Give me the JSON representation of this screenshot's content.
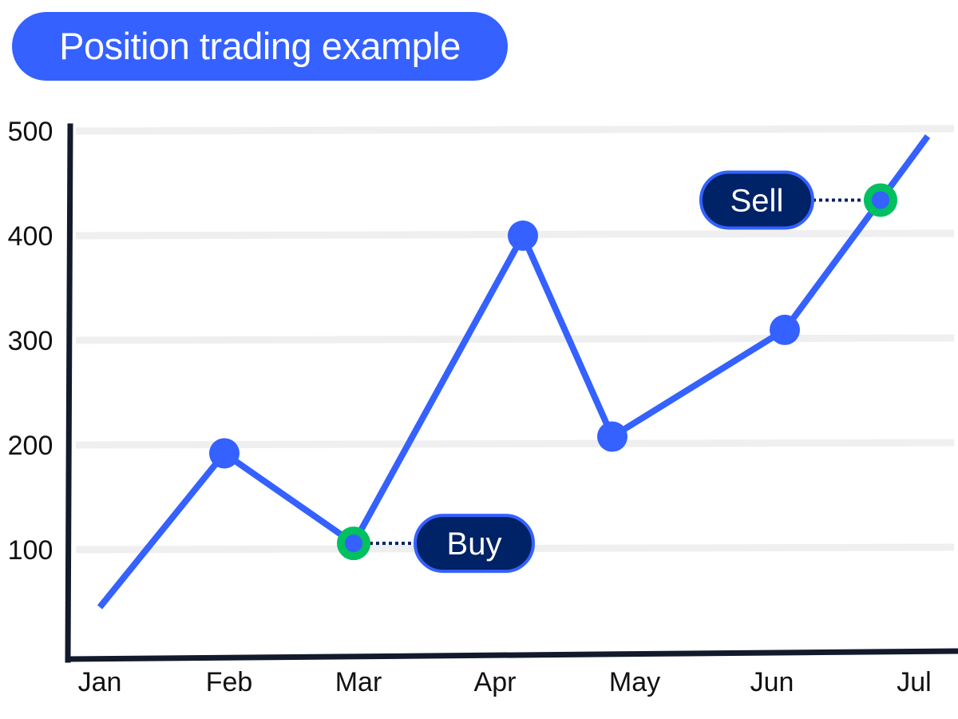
{
  "chart_data": {
    "type": "line",
    "title": "Position trading example",
    "categories": [
      "Jan",
      "Feb",
      "Mar",
      "Apr",
      "May",
      "Jun",
      "Jul"
    ],
    "values": [
      45,
      192,
      106,
      400,
      208,
      310,
      495
    ],
    "y_ticks": [
      "100",
      "200",
      "300",
      "400",
      "500"
    ],
    "ylim": [
      0,
      520
    ],
    "grid": true,
    "annotations": [
      {
        "label": "Buy",
        "month": "Mar",
        "value": 106
      },
      {
        "label": "Sell",
        "month": "between Jun and Jul",
        "value": 434
      }
    ],
    "colors": {
      "line": "#3461ff",
      "marker_ring": "#00c060",
      "pill": "#002266",
      "axis": "#131a2b",
      "grid": "#efefef"
    }
  }
}
